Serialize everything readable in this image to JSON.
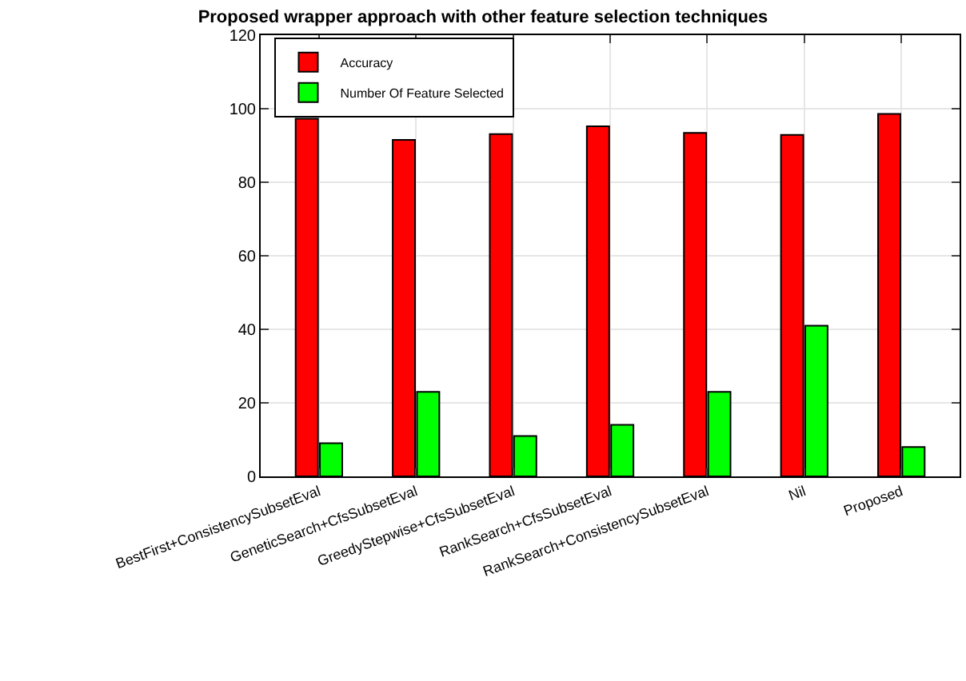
{
  "chart_data": {
    "type": "bar",
    "title": "Proposed wrapper approach with other feature selection techniques",
    "categories": [
      "BestFirst+ConsistencySubsetEval",
      "GeneticSearch+CfsSubsetEval",
      "GreedyStepwise+CfsSubsetEval",
      "RankSearch+CfsSubsetEval",
      "RankSearch+ConsistencySubsetEval",
      "Nil",
      "Proposed"
    ],
    "series": [
      {
        "name": "Accuracy",
        "color": "#ff0000",
        "values": [
          97.3,
          91.5,
          93.1,
          95.2,
          93.4,
          92.9,
          98.6
        ]
      },
      {
        "name": "Number Of Feature Selected",
        "color": "#00ff00",
        "values": [
          9,
          23,
          11,
          14,
          23,
          41,
          8
        ]
      }
    ],
    "ylim": [
      0,
      120
    ],
    "yticks": [
      0,
      20,
      40,
      60,
      80,
      100,
      120
    ],
    "grid": true,
    "legend": "top left"
  }
}
